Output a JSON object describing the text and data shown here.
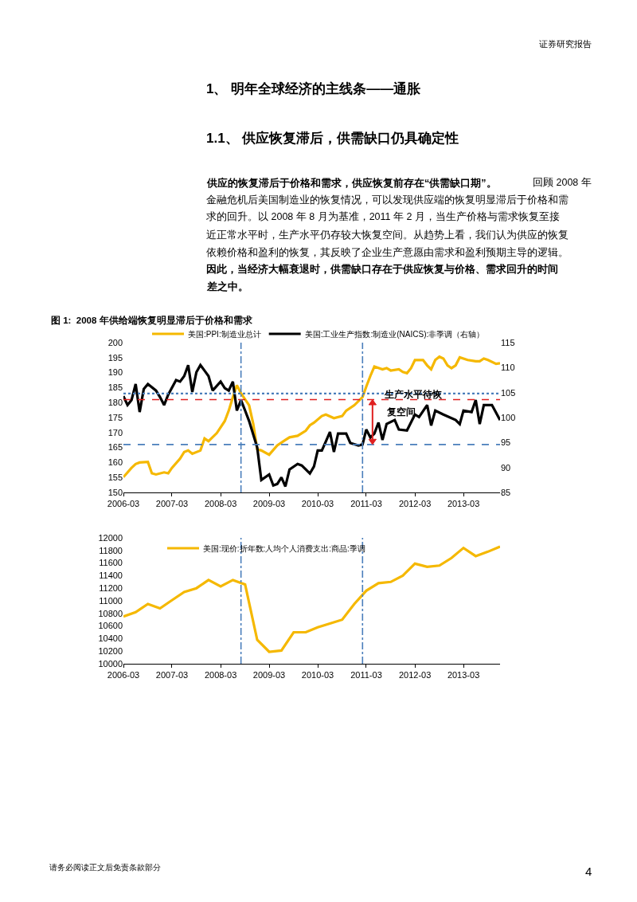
{
  "chart_data": [
    {
      "type": "line",
      "title": "图 1:  2008 年供给端恢复明显滞后于价格和需求",
      "annotations": [
        "证券研究报告",
        "1、 明年全球经济的主线条——通胀",
        "1.1、 供应恢复滞后，供需缺口仍具确定性",
        "供应的恢复滞后于价格和需求，供应恢复前存在“供需缺口期”。",
        "回顾 2008 年",
        "金融危机后美国制造业的恢复情况，可以发现供应端的恢复明显滞后于价格和需",
        "求的回升。以 2008 年 8 月为基准，2011 年 2 月，当生产价格与需求恢复至接",
        "近正常水平时，生产水平仍存较大恢复空间。从趋势上看，我们认为供应的恢复",
        "依赖价格和盈利的恢复，其反映了企业生产意愿由需求和盈利预期主导的逻辑。",
        "因此，当经济大幅衰退时，供需缺口存在于供应恢复与价格、需求回升的时间",
        "差之中。",
        "请务必阅读正文后免责条款部分",
        "4",
        {
          "text": "生产水平待恢",
          "x": "2011-07",
          "y": 181
        },
        "复空间"
      ],
      "xlim": [
        "2006-03",
        "2013-12"
      ],
      "xticks": [
        "2006-03",
        "2007-03",
        "2008-03",
        "2009-03",
        "2010-03",
        "2011-03",
        "2012-03",
        "2013-03"
      ],
      "ylim": [
        150,
        200
      ],
      "yticks": [
        150,
        155,
        160,
        165,
        170,
        175,
        180,
        185,
        190,
        195,
        200
      ],
      "y2lim": [
        85,
        115
      ],
      "y2ticks": [
        85,
        90,
        95,
        100,
        105,
        110,
        115
      ],
      "legend": "top",
      "grid": false,
      "ref_lines": [
        {
          "axis": "y",
          "value": 183,
          "color": "#4a7ebb",
          "line_style": "dotted"
        },
        {
          "axis": "y",
          "value": 181,
          "color": "#e02020",
          "line_style": "dashed"
        },
        {
          "axis": "y",
          "value": 166,
          "color": "#4a7ebb",
          "line_style": "dashed"
        },
        {
          "axis": "x",
          "value": "2008-08",
          "color": "#4a7ebb",
          "line_style": "dashdot"
        },
        {
          "axis": "x",
          "value": "2011-02",
          "color": "#4a7ebb",
          "line_style": "dashdot"
        }
      ],
      "series": [
        {
          "name": "美国:PPI:制造业总计",
          "color": "#f5b800",
          "x": [
            "2006-03",
            "2006-05",
            "2006-06",
            "2006-07",
            "2006-09",
            "2006-10",
            "2006-11",
            "2007-01",
            "2007-02",
            "2007-03",
            "2007-05",
            "2007-06",
            "2007-07",
            "2007-08",
            "2007-10",
            "2007-11",
            "2007-12",
            "2008-02",
            "2008-04",
            "2008-05",
            "2008-06",
            "2008-07",
            "2008-08",
            "2008-10",
            "2008-11",
            "2008-12",
            "2009-01",
            "2009-03",
            "2009-05",
            "2009-07",
            "2009-08",
            "2009-10",
            "2009-12",
            "2010-01",
            "2010-02",
            "2010-04",
            "2010-05",
            "2010-07",
            "2010-09",
            "2010-10",
            "2010-12",
            "2011-02",
            "2011-03",
            "2011-04",
            "2011-05",
            "2011-07",
            "2011-08",
            "2011-09",
            "2011-11",
            "2011-12",
            "2012-01",
            "2012-02",
            "2012-03",
            "2012-05",
            "2012-06",
            "2012-07",
            "2012-08",
            "2012-09",
            "2012-10",
            "2012-11",
            "2012-12",
            "2013-01",
            "2013-02",
            "2013-04",
            "2013-06",
            "2013-07",
            "2013-08",
            "2013-09",
            "2013-11",
            "2013-12"
          ],
          "values": [
            155.1,
            158.2,
            159.5,
            160,
            160.2,
            156.4,
            156,
            156.7,
            156.4,
            158.2,
            161.3,
            163.5,
            164,
            162.9,
            164,
            168,
            167.1,
            169.8,
            173.8,
            177.3,
            181.8,
            185.8,
            183.1,
            179.1,
            172.9,
            164.4,
            164,
            162.6,
            165.7,
            167.5,
            168.4,
            168.9,
            170.6,
            172.4,
            173.3,
            175.5,
            176,
            174.8,
            175.5,
            177.3,
            179.1,
            181.8,
            185.3,
            188.9,
            192,
            191.1,
            191.5,
            190.7,
            191.1,
            190.2,
            189.8,
            191.5,
            194.2,
            194.2,
            192.4,
            191.1,
            194.2,
            195.3,
            194.7,
            192.4,
            191.5,
            192.4,
            195.1,
            194.2,
            193.8,
            193.8,
            194.7,
            194.2,
            192.9,
            193.1
          ]
        },
        {
          "name": "美国:工业生产指数:制造业(NAICS):非季调（右轴）",
          "color": "#000000",
          "axis": "y2",
          "x": [
            "2006-03",
            "2006-04",
            "2006-05",
            "2006-06",
            "2006-07",
            "2006-08",
            "2006-09",
            "2006-11",
            "2006-12",
            "2007-01",
            "2007-02",
            "2007-04",
            "2007-05",
            "2007-06",
            "2007-07",
            "2007-08",
            "2007-09",
            "2007-10",
            "2007-11",
            "2007-12",
            "2008-01",
            "2008-03",
            "2008-04",
            "2008-05",
            "2008-06",
            "2008-07",
            "2008-08",
            "2008-09",
            "2008-10",
            "2008-12",
            "2009-01",
            "2009-03",
            "2009-04",
            "2009-05",
            "2009-06",
            "2009-07",
            "2009-08",
            "2009-10",
            "2009-11",
            "2010-01",
            "2010-02",
            "2010-03",
            "2010-04",
            "2010-05",
            "2010-06",
            "2010-07",
            "2010-08",
            "2010-10",
            "2010-11",
            "2011-01",
            "2011-02",
            "2011-03",
            "2011-04",
            "2011-05",
            "2011-06",
            "2011-07",
            "2011-08",
            "2011-10",
            "2011-11",
            "2012-01",
            "2012-03",
            "2012-04",
            "2012-06",
            "2012-07",
            "2012-08",
            "2012-10",
            "2013-01",
            "2013-02",
            "2013-03",
            "2013-05",
            "2013-06",
            "2013-07",
            "2013-08",
            "2013-10",
            "2013-12"
          ],
          "values": [
            104.3,
            102.5,
            103.5,
            106.7,
            101.1,
            105.7,
            106.7,
            105.4,
            104.1,
            102.5,
            104.6,
            107.5,
            107.2,
            108.3,
            110.5,
            105.1,
            109.1,
            110.5,
            109.4,
            108.3,
            105.4,
            107.2,
            105.9,
            105.4,
            107.2,
            101.4,
            103.5,
            101.4,
            99.3,
            94,
            87.5,
            88.6,
            86.4,
            86.7,
            88,
            86.2,
            89.6,
            90.7,
            90.4,
            88.8,
            90.2,
            93.4,
            93.4,
            95.2,
            97.1,
            93.1,
            96.8,
            96.8,
            94.9,
            94.4,
            94.6,
            97.6,
            96,
            96.8,
            99,
            95.5,
            98.7,
            99.5,
            97.6,
            97.4,
            100.6,
            100.1,
            102.5,
            98.4,
            101.4,
            100.6,
            99.5,
            98.7,
            101.4,
            101.1,
            103.5,
            98.7,
            102.5,
            102.5,
            99.5
          ]
        }
      ]
    },
    {
      "type": "line",
      "x": [
        "2006-03",
        "2006-06",
        "2006-09",
        "2006-12",
        "2007-03",
        "2007-06",
        "2007-09",
        "2007-12",
        "2008-03",
        "2008-06",
        "2008-09",
        "2008-12",
        "2009-03",
        "2009-06",
        "2009-09",
        "2009-12",
        "2010-03",
        "2010-06",
        "2010-09",
        "2010-12",
        "2011-03",
        "2011-06",
        "2011-09",
        "2011-12",
        "2012-03",
        "2012-06",
        "2012-09",
        "2012-12",
        "2013-03",
        "2013-06",
        "2013-09",
        "2013-12"
      ],
      "xlim": [
        "2006-03",
        "2013-12"
      ],
      "xticks": [
        "2006-03",
        "2007-03",
        "2008-03",
        "2009-03",
        "2010-03",
        "2011-03",
        "2012-03",
        "2013-03"
      ],
      "ylim": [
        10000,
        12000
      ],
      "yticks": [
        10000,
        10200,
        10400,
        10600,
        10800,
        11000,
        11200,
        11400,
        11600,
        11800,
        12000
      ],
      "legend": "top left",
      "grid": false,
      "ref_lines": [
        {
          "axis": "x",
          "value": "2008-08",
          "color": "#4a7ebb",
          "line_style": "dashdot"
        },
        {
          "axis": "x",
          "value": "2011-02",
          "color": "#4a7ebb",
          "line_style": "dashdot"
        }
      ],
      "series": [
        {
          "name": "美国:现价:折年数:人均个人消费支出:商品:季调",
          "color": "#f5b800",
          "values": [
            10750,
            10820,
            10950,
            10880,
            11010,
            11140,
            11200,
            11330,
            11230,
            11330,
            11260,
            10380,
            10190,
            10210,
            10500,
            10500,
            10580,
            10640,
            10700,
            10950,
            11160,
            11280,
            11300,
            11400,
            11590,
            11540,
            11560,
            11680,
            11840,
            11710,
            11780,
            11860
          ]
        }
      ]
    }
  ]
}
